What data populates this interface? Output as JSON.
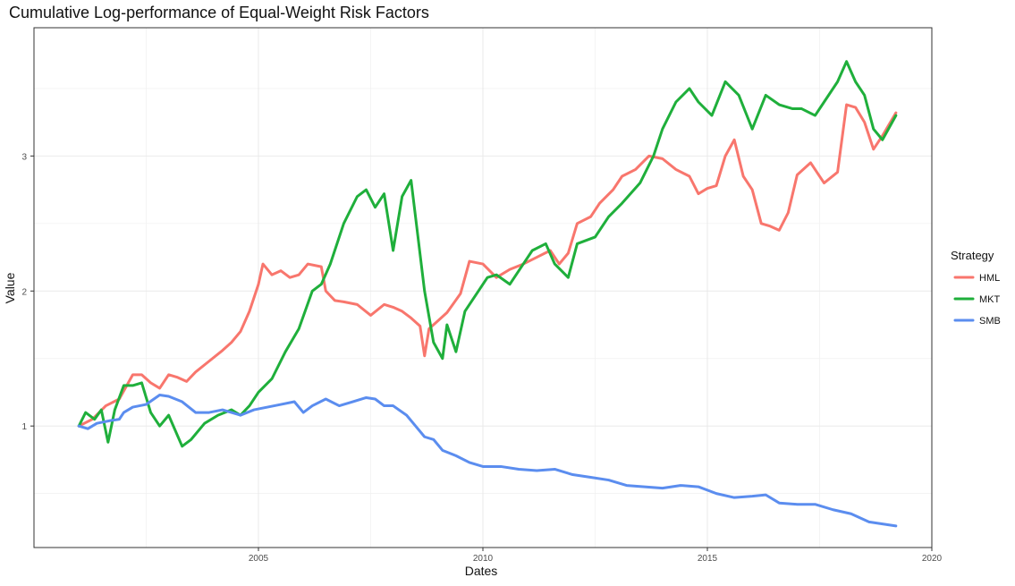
{
  "chart_data": {
    "type": "line",
    "title": "Cumulative Log-performance of Equal-Weight Risk Factors",
    "xlabel": "Dates",
    "ylabel": "Value",
    "x_ticks": [
      2005,
      2010,
      2015,
      2020
    ],
    "y_ticks": [
      1,
      2,
      3
    ],
    "xlim": [
      2000.0,
      2020.0
    ],
    "ylim": [
      0.1,
      3.95
    ],
    "grid": true,
    "legend": {
      "title": "Strategy",
      "placement": "right"
    },
    "series": [
      {
        "name": "HML",
        "color": "#F8766D",
        "points": [
          [
            2001.0,
            1.0
          ],
          [
            2001.3,
            1.05
          ],
          [
            2001.6,
            1.15
          ],
          [
            2001.9,
            1.2
          ],
          [
            2002.2,
            1.38
          ],
          [
            2002.4,
            1.38
          ],
          [
            2002.6,
            1.32
          ],
          [
            2002.8,
            1.28
          ],
          [
            2003.0,
            1.38
          ],
          [
            2003.2,
            1.36
          ],
          [
            2003.4,
            1.33
          ],
          [
            2003.6,
            1.4
          ],
          [
            2003.9,
            1.48
          ],
          [
            2004.2,
            1.56
          ],
          [
            2004.4,
            1.62
          ],
          [
            2004.6,
            1.7
          ],
          [
            2004.8,
            1.85
          ],
          [
            2005.0,
            2.05
          ],
          [
            2005.1,
            2.2
          ],
          [
            2005.3,
            2.12
          ],
          [
            2005.5,
            2.15
          ],
          [
            2005.7,
            2.1
          ],
          [
            2005.9,
            2.12
          ],
          [
            2006.1,
            2.2
          ],
          [
            2006.4,
            2.18
          ],
          [
            2006.5,
            2.0
          ],
          [
            2006.7,
            1.93
          ],
          [
            2006.9,
            1.92
          ],
          [
            2007.2,
            1.9
          ],
          [
            2007.5,
            1.82
          ],
          [
            2007.8,
            1.9
          ],
          [
            2008.0,
            1.88
          ],
          [
            2008.2,
            1.85
          ],
          [
            2008.4,
            1.8
          ],
          [
            2008.6,
            1.74
          ],
          [
            2008.7,
            1.52
          ],
          [
            2008.8,
            1.72
          ],
          [
            2009.0,
            1.78
          ],
          [
            2009.2,
            1.84
          ],
          [
            2009.5,
            1.98
          ],
          [
            2009.7,
            2.22
          ],
          [
            2010.0,
            2.2
          ],
          [
            2010.3,
            2.1
          ],
          [
            2010.6,
            2.16
          ],
          [
            2010.9,
            2.2
          ],
          [
            2011.2,
            2.25
          ],
          [
            2011.5,
            2.3
          ],
          [
            2011.7,
            2.2
          ],
          [
            2011.9,
            2.28
          ],
          [
            2012.1,
            2.5
          ],
          [
            2012.4,
            2.55
          ],
          [
            2012.6,
            2.65
          ],
          [
            2012.9,
            2.75
          ],
          [
            2013.1,
            2.85
          ],
          [
            2013.4,
            2.9
          ],
          [
            2013.7,
            3.0
          ],
          [
            2014.0,
            2.98
          ],
          [
            2014.3,
            2.9
          ],
          [
            2014.6,
            2.85
          ],
          [
            2014.8,
            2.72
          ],
          [
            2015.0,
            2.76
          ],
          [
            2015.2,
            2.78
          ],
          [
            2015.4,
            3.0
          ],
          [
            2015.6,
            3.12
          ],
          [
            2015.8,
            2.85
          ],
          [
            2016.0,
            2.75
          ],
          [
            2016.2,
            2.5
          ],
          [
            2016.4,
            2.48
          ],
          [
            2016.6,
            2.45
          ],
          [
            2016.8,
            2.58
          ],
          [
            2017.0,
            2.86
          ],
          [
            2017.3,
            2.95
          ],
          [
            2017.6,
            2.8
          ],
          [
            2017.9,
            2.88
          ],
          [
            2018.1,
            3.38
          ],
          [
            2018.3,
            3.36
          ],
          [
            2018.5,
            3.25
          ],
          [
            2018.7,
            3.05
          ],
          [
            2018.9,
            3.15
          ],
          [
            2019.2,
            3.32
          ]
        ]
      },
      {
        "name": "MKT",
        "color": "#1FAF3B",
        "points": [
          [
            2001.0,
            1.0
          ],
          [
            2001.15,
            1.1
          ],
          [
            2001.35,
            1.05
          ],
          [
            2001.5,
            1.12
          ],
          [
            2001.65,
            0.88
          ],
          [
            2001.8,
            1.12
          ],
          [
            2002.0,
            1.3
          ],
          [
            2002.2,
            1.3
          ],
          [
            2002.4,
            1.32
          ],
          [
            2002.6,
            1.1
          ],
          [
            2002.8,
            1.0
          ],
          [
            2003.0,
            1.08
          ],
          [
            2003.3,
            0.85
          ],
          [
            2003.5,
            0.9
          ],
          [
            2003.8,
            1.02
          ],
          [
            2004.1,
            1.08
          ],
          [
            2004.4,
            1.12
          ],
          [
            2004.6,
            1.08
          ],
          [
            2004.8,
            1.15
          ],
          [
            2005.0,
            1.25
          ],
          [
            2005.3,
            1.35
          ],
          [
            2005.6,
            1.55
          ],
          [
            2005.9,
            1.72
          ],
          [
            2006.2,
            2.0
          ],
          [
            2006.4,
            2.05
          ],
          [
            2006.6,
            2.2
          ],
          [
            2006.9,
            2.5
          ],
          [
            2007.2,
            2.7
          ],
          [
            2007.4,
            2.75
          ],
          [
            2007.6,
            2.62
          ],
          [
            2007.8,
            2.72
          ],
          [
            2008.0,
            2.3
          ],
          [
            2008.2,
            2.7
          ],
          [
            2008.4,
            2.82
          ],
          [
            2008.7,
            2.0
          ],
          [
            2008.9,
            1.62
          ],
          [
            2009.1,
            1.5
          ],
          [
            2009.2,
            1.75
          ],
          [
            2009.4,
            1.55
          ],
          [
            2009.6,
            1.85
          ],
          [
            2009.9,
            2.0
          ],
          [
            2010.1,
            2.1
          ],
          [
            2010.3,
            2.12
          ],
          [
            2010.6,
            2.05
          ],
          [
            2010.9,
            2.2
          ],
          [
            2011.1,
            2.3
          ],
          [
            2011.4,
            2.35
          ],
          [
            2011.6,
            2.2
          ],
          [
            2011.9,
            2.1
          ],
          [
            2012.1,
            2.35
          ],
          [
            2012.5,
            2.4
          ],
          [
            2012.8,
            2.55
          ],
          [
            2013.1,
            2.65
          ],
          [
            2013.5,
            2.8
          ],
          [
            2013.8,
            3.0
          ],
          [
            2014.0,
            3.2
          ],
          [
            2014.3,
            3.4
          ],
          [
            2014.6,
            3.5
          ],
          [
            2014.8,
            3.4
          ],
          [
            2015.1,
            3.3
          ],
          [
            2015.4,
            3.55
          ],
          [
            2015.7,
            3.45
          ],
          [
            2016.0,
            3.2
          ],
          [
            2016.3,
            3.45
          ],
          [
            2016.6,
            3.38
          ],
          [
            2016.9,
            3.35
          ],
          [
            2017.1,
            3.35
          ],
          [
            2017.4,
            3.3
          ],
          [
            2017.6,
            3.4
          ],
          [
            2017.9,
            3.55
          ],
          [
            2018.1,
            3.7
          ],
          [
            2018.3,
            3.55
          ],
          [
            2018.5,
            3.45
          ],
          [
            2018.7,
            3.2
          ],
          [
            2018.9,
            3.12
          ],
          [
            2019.2,
            3.3
          ]
        ]
      },
      {
        "name": "SMB",
        "color": "#5B8DEF",
        "points": [
          [
            2001.0,
            1.0
          ],
          [
            2001.2,
            0.98
          ],
          [
            2001.4,
            1.02
          ],
          [
            2001.7,
            1.04
          ],
          [
            2001.9,
            1.05
          ],
          [
            2002.0,
            1.1
          ],
          [
            2002.2,
            1.14
          ],
          [
            2002.5,
            1.16
          ],
          [
            2002.8,
            1.23
          ],
          [
            2003.0,
            1.22
          ],
          [
            2003.3,
            1.18
          ],
          [
            2003.6,
            1.1
          ],
          [
            2003.9,
            1.1
          ],
          [
            2004.2,
            1.12
          ],
          [
            2004.4,
            1.1
          ],
          [
            2004.6,
            1.08
          ],
          [
            2004.9,
            1.12
          ],
          [
            2005.2,
            1.14
          ],
          [
            2005.5,
            1.16
          ],
          [
            2005.8,
            1.18
          ],
          [
            2006.0,
            1.1
          ],
          [
            2006.2,
            1.15
          ],
          [
            2006.5,
            1.2
          ],
          [
            2006.8,
            1.15
          ],
          [
            2007.1,
            1.18
          ],
          [
            2007.4,
            1.21
          ],
          [
            2007.6,
            1.2
          ],
          [
            2007.8,
            1.15
          ],
          [
            2008.0,
            1.15
          ],
          [
            2008.3,
            1.08
          ],
          [
            2008.5,
            1.0
          ],
          [
            2008.7,
            0.92
          ],
          [
            2008.9,
            0.9
          ],
          [
            2009.1,
            0.82
          ],
          [
            2009.4,
            0.78
          ],
          [
            2009.7,
            0.73
          ],
          [
            2010.0,
            0.7
          ],
          [
            2010.4,
            0.7
          ],
          [
            2010.8,
            0.68
          ],
          [
            2011.2,
            0.67
          ],
          [
            2011.6,
            0.68
          ],
          [
            2012.0,
            0.64
          ],
          [
            2012.4,
            0.62
          ],
          [
            2012.8,
            0.6
          ],
          [
            2013.2,
            0.56
          ],
          [
            2013.6,
            0.55
          ],
          [
            2014.0,
            0.54
          ],
          [
            2014.4,
            0.56
          ],
          [
            2014.8,
            0.55
          ],
          [
            2015.2,
            0.5
          ],
          [
            2015.6,
            0.47
          ],
          [
            2016.0,
            0.48
          ],
          [
            2016.3,
            0.49
          ],
          [
            2016.6,
            0.43
          ],
          [
            2017.0,
            0.42
          ],
          [
            2017.4,
            0.42
          ],
          [
            2017.8,
            0.38
          ],
          [
            2018.2,
            0.35
          ],
          [
            2018.6,
            0.29
          ],
          [
            2019.2,
            0.26
          ]
        ]
      }
    ]
  }
}
